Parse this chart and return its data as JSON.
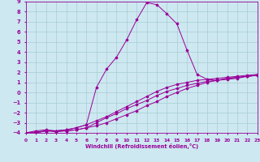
{
  "xlabel": "Windchill (Refroidissement éolien,°C)",
  "background_color": "#cde8f0",
  "line_color": "#990099",
  "grid_color": "#a8ccd4",
  "xmin": 0,
  "xmax": 23,
  "ymin": -4,
  "ymax": 9,
  "curves": [
    [
      [
        0,
        -4.0
      ],
      [
        1,
        -4.0
      ],
      [
        2,
        -3.8
      ],
      [
        3,
        -3.8
      ],
      [
        4,
        -3.8
      ],
      [
        5,
        -3.7
      ],
      [
        6,
        -3.5
      ],
      [
        7,
        -3.3
      ],
      [
        8,
        -3.0
      ],
      [
        9,
        -2.6
      ],
      [
        10,
        -2.2
      ],
      [
        11,
        -1.8
      ],
      [
        12,
        -1.3
      ],
      [
        13,
        -0.9
      ],
      [
        14,
        -0.4
      ],
      [
        15,
        0.0
      ],
      [
        16,
        0.4
      ],
      [
        17,
        0.7
      ],
      [
        18,
        1.0
      ],
      [
        19,
        1.2
      ],
      [
        20,
        1.4
      ],
      [
        21,
        1.5
      ],
      [
        22,
        1.6
      ],
      [
        23,
        1.7
      ]
    ],
    [
      [
        0,
        -4.0
      ],
      [
        1,
        -3.9
      ],
      [
        2,
        -3.8
      ],
      [
        3,
        -3.8
      ],
      [
        4,
        -3.7
      ],
      [
        5,
        -3.5
      ],
      [
        6,
        -3.2
      ],
      [
        7,
        -2.8
      ],
      [
        8,
        -2.4
      ],
      [
        9,
        -1.9
      ],
      [
        10,
        -1.4
      ],
      [
        11,
        -0.9
      ],
      [
        12,
        -0.4
      ],
      [
        13,
        0.1
      ],
      [
        14,
        0.5
      ],
      [
        15,
        0.8
      ],
      [
        16,
        1.0
      ],
      [
        17,
        1.2
      ],
      [
        18,
        1.3
      ],
      [
        19,
        1.4
      ],
      [
        20,
        1.5
      ],
      [
        21,
        1.6
      ],
      [
        22,
        1.7
      ],
      [
        23,
        1.8
      ]
    ],
    [
      [
        0,
        -4.0
      ],
      [
        1,
        -3.8
      ],
      [
        2,
        -3.7
      ],
      [
        3,
        -3.8
      ],
      [
        4,
        -3.7
      ],
      [
        5,
        -3.5
      ],
      [
        6,
        -3.2
      ],
      [
        7,
        0.5
      ],
      [
        8,
        2.3
      ],
      [
        9,
        3.5
      ],
      [
        10,
        5.2
      ],
      [
        11,
        7.2
      ],
      [
        12,
        8.9
      ],
      [
        13,
        8.7
      ],
      [
        14,
        7.8
      ],
      [
        15,
        6.8
      ],
      [
        16,
        4.2
      ],
      [
        17,
        1.8
      ],
      [
        18,
        1.3
      ],
      [
        19,
        1.2
      ],
      [
        20,
        1.3
      ],
      [
        21,
        1.4
      ],
      [
        22,
        1.6
      ],
      [
        23,
        1.7
      ]
    ],
    [
      [
        0,
        -4.0
      ],
      [
        1,
        -4.0
      ],
      [
        2,
        -3.8
      ],
      [
        3,
        -3.9
      ],
      [
        4,
        -3.8
      ],
      [
        5,
        -3.7
      ],
      [
        6,
        -3.5
      ],
      [
        7,
        -3.0
      ],
      [
        8,
        -2.5
      ],
      [
        9,
        -2.1
      ],
      [
        10,
        -1.6
      ],
      [
        11,
        -1.2
      ],
      [
        12,
        -0.8
      ],
      [
        13,
        -0.3
      ],
      [
        14,
        0.1
      ],
      [
        15,
        0.4
      ],
      [
        16,
        0.7
      ],
      [
        17,
        0.9
      ],
      [
        18,
        1.1
      ],
      [
        19,
        1.2
      ],
      [
        20,
        1.4
      ],
      [
        21,
        1.5
      ],
      [
        22,
        1.6
      ],
      [
        23,
        1.7
      ]
    ]
  ]
}
